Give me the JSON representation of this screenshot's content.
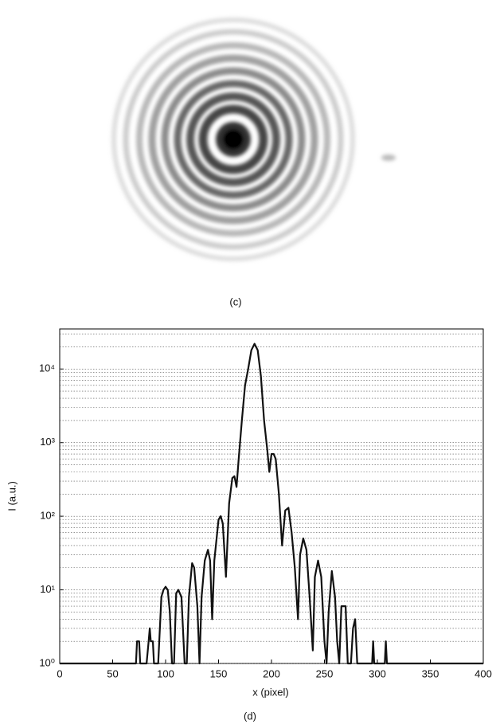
{
  "image_panel": {
    "caption": "(c)"
  },
  "chart_data": {
    "type": "line",
    "caption": "(d)",
    "x_label": "x (pixel)",
    "y_label": "I (a.u.)",
    "log_y": true,
    "grid": true,
    "minor_grid": true,
    "xlim": [
      0,
      400
    ],
    "xticks": [
      0,
      50,
      100,
      150,
      200,
      250,
      300,
      350,
      400
    ],
    "ylim": [
      1,
      35000
    ],
    "yticks": [
      {
        "value": 1,
        "label": "10⁰"
      },
      {
        "value": 10,
        "label": "10¹"
      },
      {
        "value": 100,
        "label": "10²"
      },
      {
        "value": 1000,
        "label": "10³"
      },
      {
        "value": 10000,
        "label": "10⁴"
      }
    ],
    "series": [
      {
        "color": "#111111",
        "x": [
          0,
          72,
          73,
          75,
          76,
          82,
          84,
          85,
          86,
          88,
          89,
          93,
          96,
          98,
          100,
          102,
          104,
          106,
          108,
          110,
          112,
          115,
          118,
          120,
          122,
          125,
          127,
          130,
          132,
          134,
          137,
          140,
          142,
          144,
          146,
          150,
          152,
          154,
          157,
          160,
          163,
          165,
          167,
          169,
          172,
          175,
          178,
          181,
          184,
          187,
          190,
          193,
          196,
          198,
          200,
          202,
          204,
          207,
          210,
          213,
          216,
          219,
          222,
          225,
          227,
          230,
          233,
          236,
          239,
          241,
          244,
          247,
          250,
          252,
          254,
          257,
          260,
          262,
          264,
          266,
          270,
          272,
          275,
          277,
          279,
          281,
          295,
          296,
          297,
          307,
          308,
          309,
          400
        ],
        "values": [
          1,
          1,
          2,
          2,
          1,
          1,
          2,
          3,
          2,
          2,
          1,
          1,
          8,
          10,
          11,
          10,
          5,
          1,
          1,
          9,
          10,
          8,
          1,
          1,
          8,
          23,
          20,
          6,
          1,
          8,
          25,
          35,
          25,
          4,
          25,
          90,
          100,
          80,
          15,
          150,
          330,
          350,
          250,
          600,
          2000,
          6000,
          10000,
          18000,
          22000,
          18000,
          8000,
          2000,
          800,
          400,
          700,
          700,
          600,
          200,
          40,
          120,
          130,
          60,
          20,
          4,
          30,
          50,
          35,
          8,
          1.5,
          15,
          25,
          15,
          2,
          1,
          5,
          18,
          8,
          2,
          1,
          6,
          6,
          1,
          1,
          3,
          4,
          1,
          1,
          2,
          1,
          1,
          2,
          1,
          1
        ]
      }
    ]
  }
}
